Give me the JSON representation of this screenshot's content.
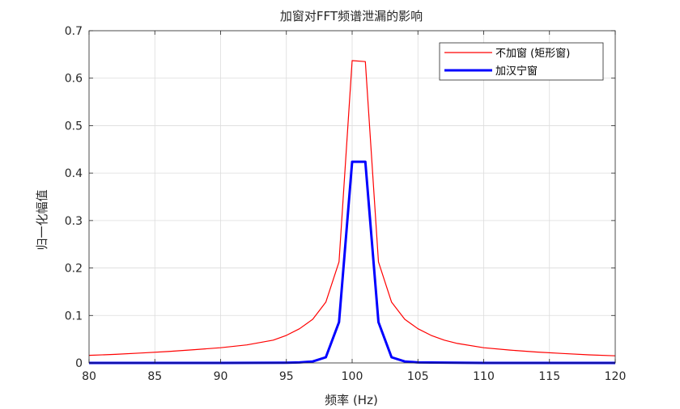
{
  "chart_data": {
    "type": "line",
    "title": "加窗对FFT频谱泄漏的影响",
    "xlabel": "频率 (Hz)",
    "ylabel": "归一化幅值",
    "xlim": [
      80,
      120
    ],
    "ylim": [
      0,
      0.7
    ],
    "xticks": [
      "80",
      "85",
      "90",
      "95",
      "100",
      "105",
      "110",
      "115",
      "120"
    ],
    "yticks": [
      "0",
      "0.1",
      "0.2",
      "0.3",
      "0.4",
      "0.5",
      "0.6",
      "0.7"
    ],
    "grid": true,
    "legend_position": "top-right",
    "series": [
      {
        "name": "不加窗 (矩形窗)",
        "color": "#ff0000",
        "line_width": "thin",
        "x": [
          80,
          82,
          84,
          86,
          88,
          90,
          92,
          94,
          95,
          96,
          97,
          98,
          99,
          100,
          101,
          102,
          103,
          104,
          105,
          106,
          107,
          108,
          110,
          112,
          114,
          116,
          118,
          120
        ],
        "y": [
          0.016,
          0.018,
          0.021,
          0.024,
          0.028,
          0.032,
          0.038,
          0.048,
          0.058,
          0.072,
          0.092,
          0.128,
          0.213,
          0.637,
          0.635,
          0.213,
          0.128,
          0.092,
          0.072,
          0.058,
          0.048,
          0.041,
          0.032,
          0.027,
          0.023,
          0.02,
          0.017,
          0.015
        ]
      },
      {
        "name": "加汉宁窗",
        "color": "#0000ff",
        "line_width": "thick",
        "x": [
          80,
          90,
          95,
          96,
          97,
          98,
          99,
          100,
          101,
          102,
          103,
          104,
          105,
          110,
          120
        ],
        "y": [
          0,
          0,
          0.0005,
          0.001,
          0.003,
          0.012,
          0.086,
          0.424,
          0.424,
          0.086,
          0.012,
          0.003,
          0.001,
          0,
          0
        ]
      }
    ]
  }
}
